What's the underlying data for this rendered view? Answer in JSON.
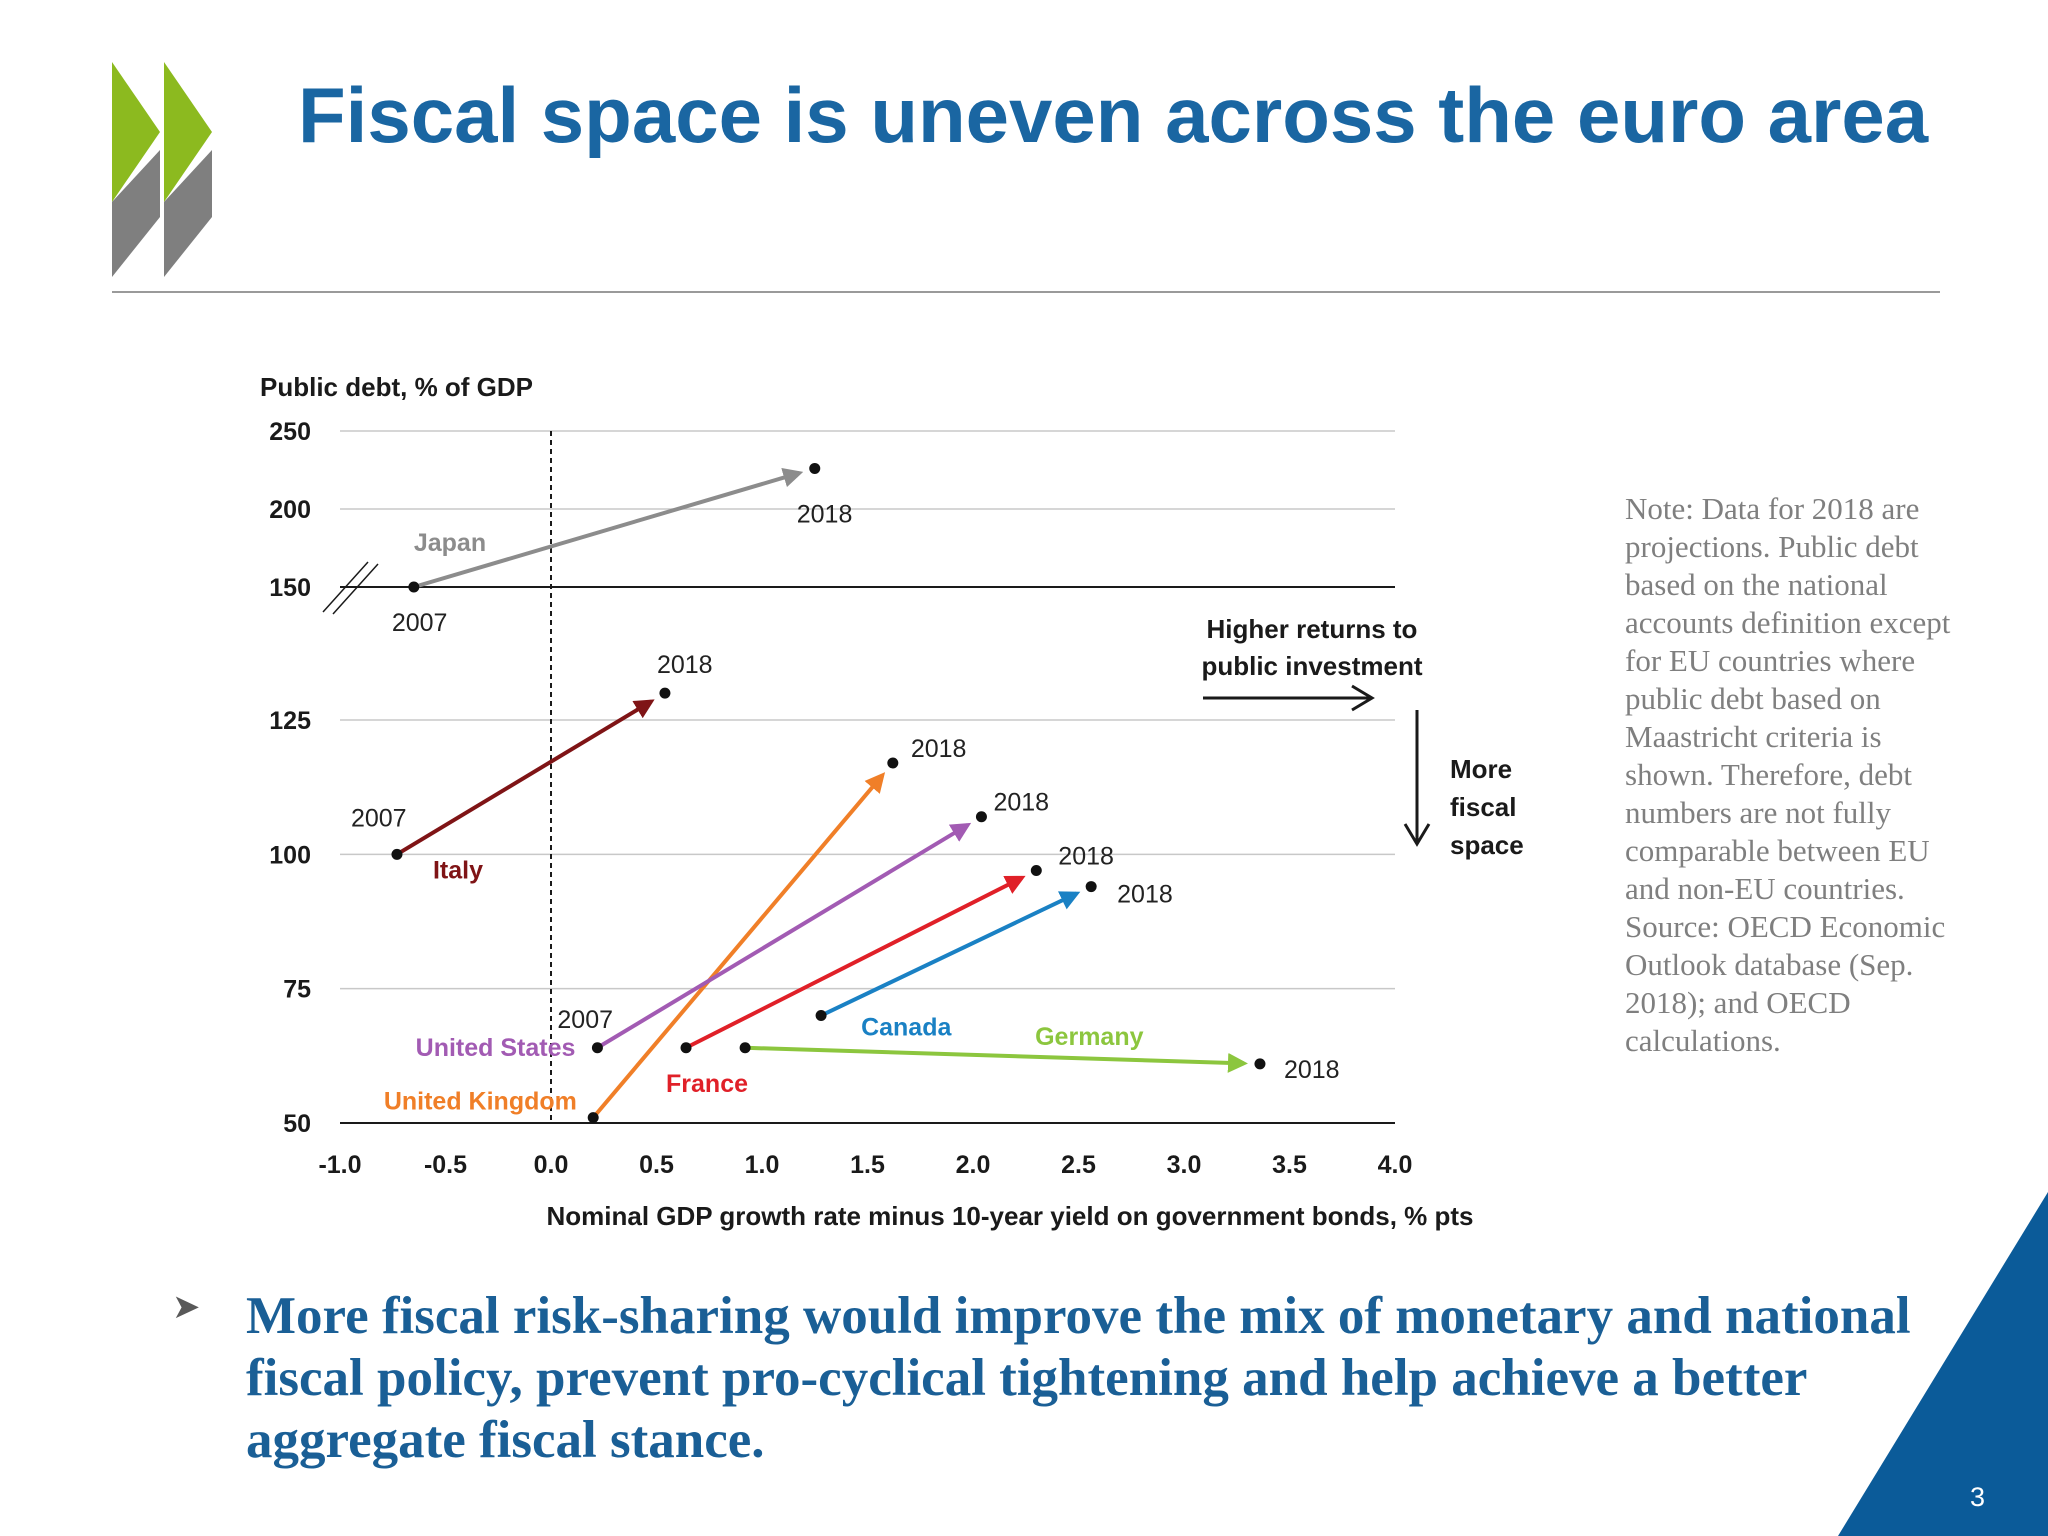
{
  "slide": {
    "title": "Fiscal space is uneven across the euro area",
    "page_number": "3",
    "bullet": "More fiscal risk-sharing would improve the mix of monetary and national fiscal policy, prevent pro-cyclical tightening and help achieve a better aggregate fiscal stance.",
    "note": "Note: Data for 2018 are projections. Public debt based on the national accounts definition except for EU countries where public debt based on Maastricht criteria is shown. Therefore, debt numbers are not fully comparable between EU and non-EU countries. Source: OECD Economic Outlook database (Sep. 2018); and OECD calculations.",
    "logo_colors": {
      "green": "#8cba1f",
      "grey": "#7f7f7f"
    },
    "accent_color": "#0b5b99"
  },
  "chart_data": {
    "type": "scatter",
    "title": "",
    "ylabel": "Public debt, % of GDP",
    "xlabel": "Nominal GDP growth rate minus 10-year yield on government bonds, % pts",
    "xlim": [
      -1.0,
      4.0
    ],
    "x_ticks": [
      "-1.0",
      "-0.5",
      "0.0",
      "0.5",
      "1.0",
      "1.5",
      "2.0",
      "2.5",
      "3.0",
      "3.5",
      "4.0"
    ],
    "y_ticks": [
      "50",
      "75",
      "100",
      "125",
      "150",
      "200",
      "250"
    ],
    "y_axis_break": "between 125 and 150",
    "grid": true,
    "vertical_reference_line_x": 0.0,
    "series": [
      {
        "name": "Japan",
        "color": "#8c8c8c",
        "start": {
          "label": "2007",
          "x": -0.65,
          "y": 150
        },
        "end": {
          "label": "2018",
          "x": 1.25,
          "y": 226
        }
      },
      {
        "name": "Italy",
        "color": "#7f1416",
        "start": {
          "label": "2007",
          "x": -0.73,
          "y": 100
        },
        "end": {
          "label": "2018",
          "x": 0.54,
          "y": 130
        }
      },
      {
        "name": "United Kingdom",
        "color": "#f07f28",
        "start": {
          "label": "",
          "x": 0.2,
          "y": 51
        },
        "end": {
          "label": "2018",
          "x": 1.62,
          "y": 117
        }
      },
      {
        "name": "United States",
        "color": "#a25bb3",
        "start": {
          "label": "2007",
          "x": 0.22,
          "y": 64
        },
        "end": {
          "label": "2018",
          "x": 2.04,
          "y": 107
        }
      },
      {
        "name": "France",
        "color": "#e02028",
        "start": {
          "label": "",
          "x": 0.64,
          "y": 64
        },
        "end": {
          "label": "2018",
          "x": 2.3,
          "y": 97
        }
      },
      {
        "name": "Canada",
        "color": "#1a81c4",
        "start": {
          "label": "",
          "x": 1.28,
          "y": 70
        },
        "end": {
          "label": "2018",
          "x": 2.56,
          "y": 94
        }
      },
      {
        "name": "Germany",
        "color": "#8cc63e",
        "start": {
          "label": "",
          "x": 0.92,
          "y": 64
        },
        "end": {
          "label": "2018",
          "x": 3.36,
          "y": 61
        }
      }
    ],
    "annotations": {
      "returns_line1": "Higher returns to",
      "returns_line2": "public investment",
      "space_line1": "More",
      "space_line2": "fiscal",
      "space_line3": "space"
    }
  }
}
